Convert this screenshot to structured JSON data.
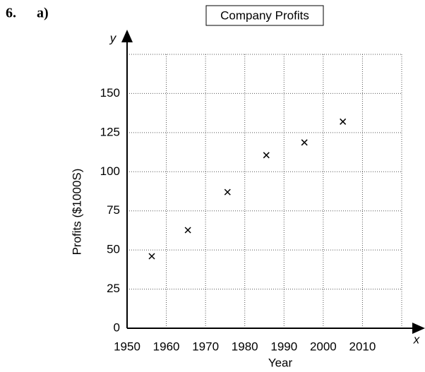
{
  "question_number": "6.",
  "part": "a)",
  "chart_data": {
    "type": "scatter",
    "title": "Company Profits",
    "x_label": "Year",
    "y_label": "Profits ($1000S)",
    "x_axis_symbol": "x",
    "y_axis_symbol": "y",
    "x": [
      1956.3,
      1965.5,
      1975.6,
      1985.5,
      1995.2,
      2005
    ],
    "values": [
      46,
      62.7,
      87,
      110.6,
      118.7,
      132
    ],
    "color": "#000000",
    "xlim": [
      1950,
      2020
    ],
    "ylim": [
      0,
      175
    ],
    "xticks": [
      1950,
      1960,
      1970,
      1980,
      1990,
      2000,
      2010
    ],
    "yticks": [
      0,
      25,
      50,
      75,
      100,
      125,
      150
    ],
    "grid": true
  }
}
